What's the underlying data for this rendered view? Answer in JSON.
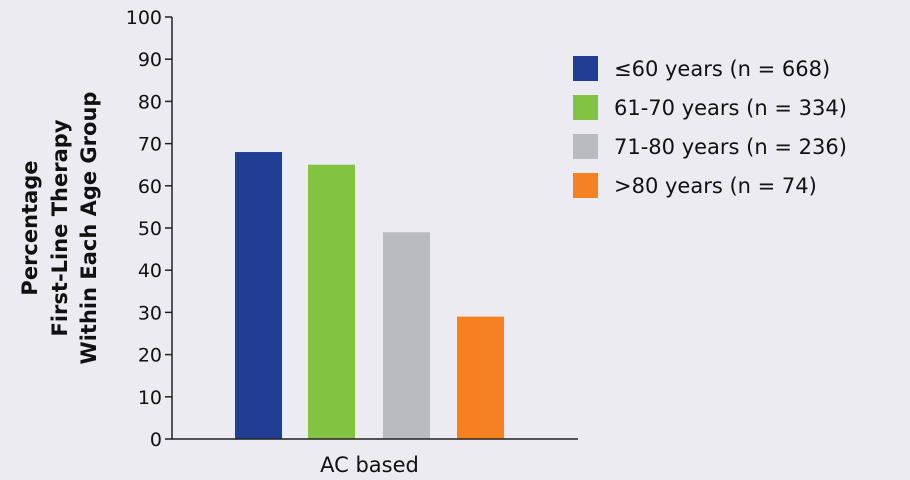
{
  "chart_data": {
    "type": "bar",
    "categories": [
      "AC based"
    ],
    "series": [
      {
        "name": "≤60 years (n = 668)",
        "values": [
          68
        ],
        "color": "#213d94"
      },
      {
        "name": "61-70 years (n = 334)",
        "values": [
          65
        ],
        "color": "#82c341"
      },
      {
        "name": "71-80 years (n = 236)",
        "values": [
          49
        ],
        "color": "#babbc0"
      },
      {
        "name": ">80 years (n = 74)",
        "values": [
          29
        ],
        "color": "#f68121"
      }
    ],
    "ylabel_lines": [
      "Percentage",
      "First-Line Therapy",
      "Within Each Age Group"
    ],
    "ylim": [
      0,
      100
    ],
    "yticks": [
      0,
      10,
      20,
      30,
      40,
      50,
      60,
      70,
      80,
      90,
      100
    ],
    "grid": false,
    "legend_position": "right"
  }
}
